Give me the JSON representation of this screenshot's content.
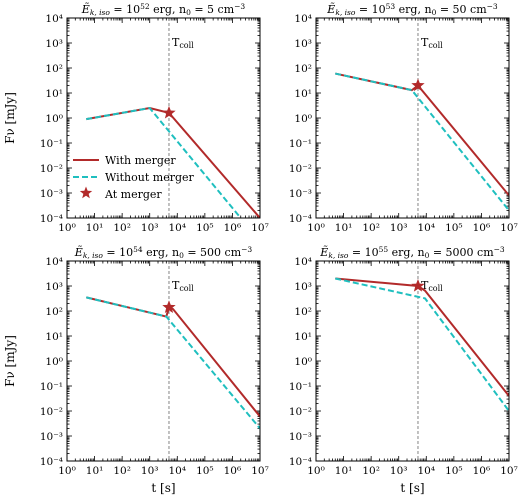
{
  "figure": {
    "ylabel": "Fν [mJy]",
    "xlabel": "t [s]",
    "legend": {
      "placement": "lower-left",
      "entries": [
        "With merger",
        "Without merger",
        "At merger"
      ]
    },
    "colors": {
      "with_merger": "#b22a2a",
      "without_merger": "#1fbfbf",
      "star": "#b22a2a",
      "vline": "#666666"
    }
  },
  "chart_data": [
    {
      "type": "line",
      "title_prefix": "Ẽ",
      "title_sub": "k, iso",
      "title_mid": " = 10",
      "title_exp": "52",
      "title_tail": " erg, n",
      "title_n_sub": "0",
      "title_n_val": " = 5 cm",
      "title_n_exp": "−3",
      "xscale": "log",
      "yscale": "log",
      "xlim": [
        1,
        10000000
      ],
      "ylim": [
        0.0001,
        10000
      ],
      "x_tick_labels": [
        "10⁰",
        "10¹",
        "10²",
        "10³",
        "10⁴",
        "10⁵",
        "10⁶",
        "10⁷"
      ],
      "y_tick_labels": [
        "10⁻⁴",
        "10⁻³",
        "10⁻²",
        "10⁻¹",
        "10⁰",
        "10¹",
        "10²",
        "10³",
        "10⁴"
      ],
      "t_coll": 5000,
      "t_coll_label": "T",
      "t_coll_sub": "coll",
      "series": [
        {
          "name": "With merger",
          "x": [
            5,
            1000,
            5000,
            10000000
          ],
          "y": [
            0.9,
            2.5,
            1.6,
            0.0001
          ]
        },
        {
          "name": "Without merger",
          "x": [
            5,
            1000,
            2000000
          ],
          "y": [
            0.9,
            2.5,
            0.0001
          ]
        }
      ],
      "star": {
        "x": 5000,
        "y": 1.6
      },
      "show_legend": true
    },
    {
      "type": "line",
      "title_prefix": "Ẽ",
      "title_sub": "k, iso",
      "title_mid": " = 10",
      "title_exp": "53",
      "title_tail": " erg, n",
      "title_n_sub": "0",
      "title_n_val": " = 50 cm",
      "title_n_exp": "−3",
      "xscale": "log",
      "yscale": "log",
      "xlim": [
        1,
        10000000
      ],
      "ylim": [
        0.0001,
        10000
      ],
      "x_tick_labels": [
        "10⁰",
        "10¹",
        "10²",
        "10³",
        "10⁴",
        "10⁵",
        "10⁶",
        "10⁷"
      ],
      "y_tick_labels": [
        "10⁻⁴",
        "10⁻³",
        "10⁻²",
        "10⁻¹",
        "10⁰",
        "10¹",
        "10²",
        "10³",
        "10⁴"
      ],
      "t_coll": 5000,
      "t_coll_label": "T",
      "t_coll_sub": "coll",
      "series": [
        {
          "name": "With merger",
          "x": [
            5,
            3000,
            5000,
            10000000
          ],
          "y": [
            60,
            13,
            20,
            0.0008
          ]
        },
        {
          "name": "Without merger",
          "x": [
            5,
            3000,
            10000000
          ],
          "y": [
            60,
            13,
            0.0002
          ]
        }
      ],
      "star": {
        "x": 5000,
        "y": 20
      },
      "show_legend": false
    },
    {
      "type": "line",
      "title_prefix": "Ẽ",
      "title_sub": "k, iso",
      "title_mid": " = 10",
      "title_exp": "54",
      "title_tail": " erg, n",
      "title_n_sub": "0",
      "title_n_val": " = 500 cm",
      "title_n_exp": "−3",
      "xscale": "log",
      "yscale": "log",
      "xlim": [
        1,
        10000000
      ],
      "ylim": [
        0.0001,
        10000
      ],
      "x_tick_labels": [
        "10⁰",
        "10¹",
        "10²",
        "10³",
        "10⁴",
        "10⁵",
        "10⁶",
        "10⁷"
      ],
      "y_tick_labels": [
        "10⁻⁴",
        "10⁻³",
        "10⁻²",
        "10⁻¹",
        "10⁰",
        "10¹",
        "10²",
        "10³",
        "10⁴"
      ],
      "t_coll": 5000,
      "t_coll_label": "T",
      "t_coll_sub": "coll",
      "series": [
        {
          "name": "With merger",
          "x": [
            5,
            4000,
            5000,
            7000,
            10000000
          ],
          "y": [
            350,
            60,
            140,
            120,
            0.006
          ]
        },
        {
          "name": "Without merger",
          "x": [
            5,
            4000,
            10000000
          ],
          "y": [
            350,
            60,
            0.002
          ]
        }
      ],
      "star": {
        "x": 5000,
        "y": 140
      },
      "show_legend": false
    },
    {
      "type": "line",
      "title_prefix": "Ẽ",
      "title_sub": "k, iso",
      "title_mid": " = 10",
      "title_exp": "55",
      "title_tail": " erg, n",
      "title_n_sub": "0",
      "title_n_val": " = 5000 cm",
      "title_n_exp": "−3",
      "xscale": "log",
      "yscale": "log",
      "xlim": [
        1,
        10000000
      ],
      "ylim": [
        0.0001,
        10000
      ],
      "x_tick_labels": [
        "10⁰",
        "10¹",
        "10²",
        "10³",
        "10⁴",
        "10⁵",
        "10⁶",
        "10⁷"
      ],
      "y_tick_labels": [
        "10⁻⁴",
        "10⁻³",
        "10⁻²",
        "10⁻¹",
        "10⁰",
        "10¹",
        "10²",
        "10³",
        "10⁴"
      ],
      "t_coll": 5000,
      "t_coll_label": "T",
      "t_coll_sub": "coll",
      "series": [
        {
          "name": "With merger",
          "x": [
            5,
            5000,
            9000,
            10000000
          ],
          "y": [
            2000,
            1000,
            650,
            0.04
          ]
        },
        {
          "name": "Without merger",
          "x": [
            5,
            9000,
            10000000
          ],
          "y": [
            2000,
            320,
            0.01
          ]
        }
      ],
      "star": {
        "x": 5000,
        "y": 1000
      },
      "show_legend": false
    }
  ]
}
